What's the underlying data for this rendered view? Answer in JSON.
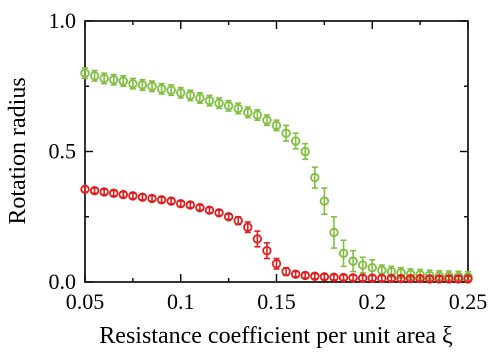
{
  "chart_data": {
    "type": "scatter",
    "title": "",
    "xlabel": "Resistance coefficient per unit area ξ",
    "ylabel": "Rotation radius",
    "xlim": [
      0.05,
      0.25
    ],
    "ylim": [
      0.0,
      1.0
    ],
    "x_ticks": [
      0.05,
      0.1,
      0.15,
      0.2,
      0.25
    ],
    "x_tick_labels": [
      "0.05",
      "0.1",
      "0.15",
      "0.2",
      "0.25"
    ],
    "y_ticks": [
      0.0,
      0.5,
      1.0
    ],
    "y_tick_labels": [
      "0.0",
      "0.5",
      "1.0"
    ],
    "grid": false,
    "legend": "none",
    "marker": "open circle with error bars",
    "x": [
      0.05,
      0.055,
      0.06,
      0.065,
      0.07,
      0.075,
      0.08,
      0.085,
      0.09,
      0.095,
      0.1,
      0.105,
      0.11,
      0.115,
      0.12,
      0.125,
      0.13,
      0.135,
      0.14,
      0.145,
      0.15,
      0.155,
      0.16,
      0.165,
      0.17,
      0.175,
      0.18,
      0.185,
      0.19,
      0.195,
      0.2,
      0.205,
      0.21,
      0.215,
      0.22,
      0.225,
      0.23,
      0.235,
      0.24,
      0.245,
      0.25
    ],
    "series": [
      {
        "color": "#80c040",
        "values": [
          0.8,
          0.79,
          0.78,
          0.775,
          0.77,
          0.76,
          0.755,
          0.75,
          0.74,
          0.735,
          0.725,
          0.715,
          0.705,
          0.695,
          0.685,
          0.675,
          0.665,
          0.65,
          0.64,
          0.62,
          0.6,
          0.57,
          0.54,
          0.5,
          0.4,
          0.31,
          0.19,
          0.11,
          0.08,
          0.065,
          0.055,
          0.045,
          0.04,
          0.035,
          0.03,
          0.028,
          0.025,
          0.023,
          0.022,
          0.021,
          0.02
        ],
        "errors": [
          0.02,
          0.02,
          0.02,
          0.02,
          0.02,
          0.02,
          0.02,
          0.02,
          0.02,
          0.02,
          0.02,
          0.02,
          0.02,
          0.02,
          0.02,
          0.02,
          0.02,
          0.02,
          0.02,
          0.02,
          0.02,
          0.03,
          0.03,
          0.03,
          0.04,
          0.05,
          0.06,
          0.05,
          0.04,
          0.03,
          0.03,
          0.02,
          0.02,
          0.02,
          0.02,
          0.02,
          0.02,
          0.02,
          0.02,
          0.02,
          0.02
        ]
      },
      {
        "color": "#e02020",
        "values": [
          0.355,
          0.35,
          0.345,
          0.34,
          0.335,
          0.33,
          0.325,
          0.32,
          0.315,
          0.31,
          0.3,
          0.295,
          0.285,
          0.275,
          0.265,
          0.25,
          0.235,
          0.21,
          0.165,
          0.12,
          0.07,
          0.04,
          0.03,
          0.025,
          0.022,
          0.02,
          0.018,
          0.017,
          0.016,
          0.015,
          0.015,
          0.014,
          0.014,
          0.013,
          0.013,
          0.013,
          0.012,
          0.012,
          0.012,
          0.012,
          0.012
        ],
        "errors": [
          0.01,
          0.01,
          0.01,
          0.01,
          0.01,
          0.01,
          0.01,
          0.01,
          0.01,
          0.01,
          0.01,
          0.01,
          0.01,
          0.01,
          0.01,
          0.01,
          0.015,
          0.02,
          0.03,
          0.03,
          0.02,
          0.015,
          0.01,
          0.01,
          0.01,
          0.01,
          0.01,
          0.01,
          0.01,
          0.01,
          0.01,
          0.01,
          0.01,
          0.01,
          0.01,
          0.01,
          0.01,
          0.01,
          0.01,
          0.01,
          0.01
        ]
      }
    ]
  }
}
